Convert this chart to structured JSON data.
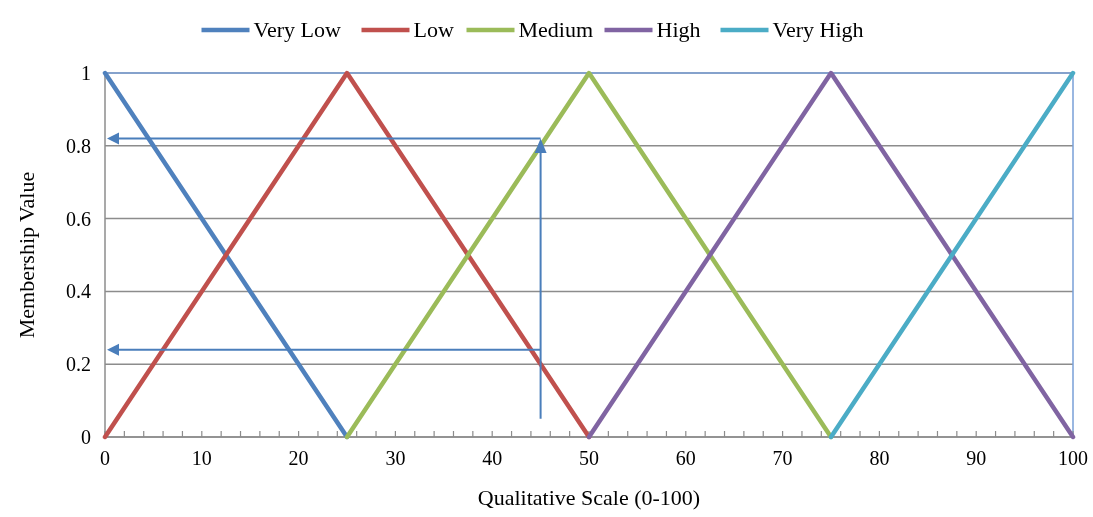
{
  "chart_data": {
    "type": "line",
    "xlabel": "Qualitative Scale (0-100)",
    "ylabel": "Membership Value",
    "series": [
      {
        "name": "Very Low",
        "color": "#4f81bd",
        "x": [
          0,
          25
        ],
        "values": [
          1,
          0
        ]
      },
      {
        "name": "Low",
        "color": "#c0504d",
        "x": [
          0,
          25,
          50
        ],
        "values": [
          0,
          1,
          0
        ]
      },
      {
        "name": "Medium",
        "color": "#9bbb59",
        "x": [
          25,
          50,
          75
        ],
        "values": [
          0,
          1,
          0
        ]
      },
      {
        "name": "High",
        "color": "#8064a2",
        "x": [
          50,
          75,
          100
        ],
        "values": [
          0,
          1,
          0
        ]
      },
      {
        "name": "Very High",
        "color": "#4bacc6",
        "x": [
          75,
          100
        ],
        "values": [
          0,
          1
        ]
      }
    ],
    "xlim": [
      0,
      100
    ],
    "ylim": [
      0,
      1
    ],
    "xticks": [
      0,
      {
        "value": 2,
        "label": null
      },
      {
        "value": 4,
        "label": null
      },
      {
        "value": 6,
        "label": null
      },
      {
        "value": 8,
        "label": null
      },
      10,
      {
        "value": 12,
        "label": null
      },
      {
        "value": 14,
        "label": null
      },
      {
        "value": 16,
        "label": null
      },
      {
        "value": 18,
        "label": null
      },
      20,
      {
        "value": 22,
        "label": null
      },
      {
        "value": 24,
        "label": null
      },
      {
        "value": 26,
        "label": null
      },
      {
        "value": 28,
        "label": null
      },
      30,
      {
        "value": 32,
        "label": null
      },
      {
        "value": 34,
        "label": null
      },
      {
        "value": 36,
        "label": null
      },
      {
        "value": 38,
        "label": null
      },
      40,
      {
        "value": 42,
        "label": null
      },
      {
        "value": 44,
        "label": null
      },
      {
        "value": 46,
        "label": null
      },
      {
        "value": 48,
        "label": null
      },
      50,
      {
        "value": 52,
        "label": null
      },
      {
        "value": 54,
        "label": null
      },
      {
        "value": 56,
        "label": null
      },
      {
        "value": 58,
        "label": null
      },
      60,
      {
        "value": 62,
        "label": null
      },
      {
        "value": 64,
        "label": null
      },
      {
        "value": 66,
        "label": null
      },
      {
        "value": 68,
        "label": null
      },
      70,
      {
        "value": 72,
        "label": null
      },
      {
        "value": 74,
        "label": null
      },
      {
        "value": 76,
        "label": null
      },
      {
        "value": 78,
        "label": null
      },
      80,
      {
        "value": 82,
        "label": null
      },
      {
        "value": 84,
        "label": null
      },
      {
        "value": 86,
        "label": null
      },
      {
        "value": 88,
        "label": null
      },
      90,
      {
        "value": 92,
        "label": null
      },
      {
        "value": 94,
        "label": null
      },
      {
        "value": 96,
        "label": null
      },
      {
        "value": 98,
        "label": null
      },
      100
    ],
    "yticks": [
      0,
      0.2,
      0.4,
      0.6,
      0.8,
      1
    ],
    "grid": "y",
    "legend": "top",
    "marker": "none",
    "line_style": "solid"
  }
}
